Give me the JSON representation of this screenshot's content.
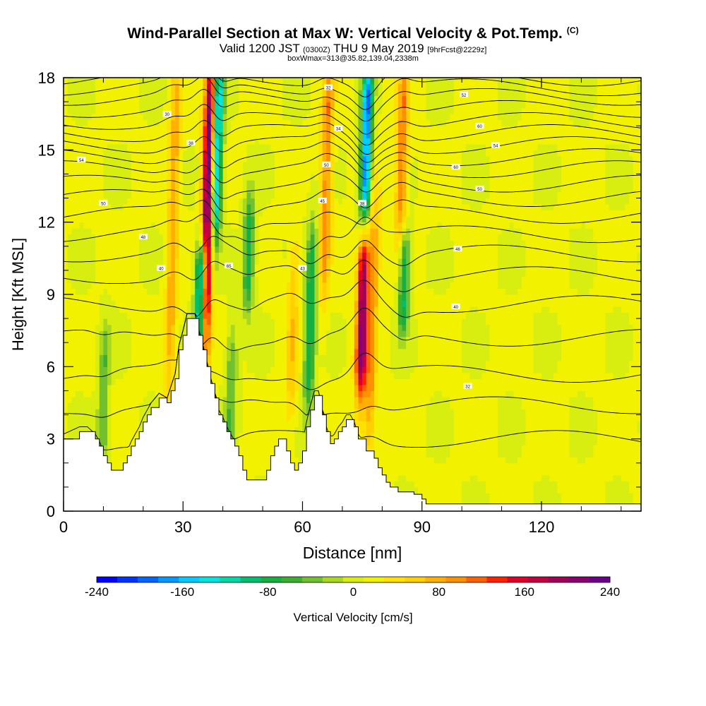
{
  "header": {
    "title": "Wind-Parallel Section at Max W: Vertical Velocity & Pot.Temp.",
    "title_mark": "(C)",
    "valid_prefix": "Valid 1200 JST",
    "valid_utc": "(0300Z)",
    "valid_date": "THU 9 May 2019",
    "forecast": "[9hrFcst@2229z]",
    "box_info": "boxWmax=313@35.82,139.04,2338m"
  },
  "chart_data": {
    "type": "heatmap",
    "xlabel": "Distance [nm]",
    "ylabel": "Height [Kft MSL]",
    "xlim": [
      0,
      145
    ],
    "ylim": [
      0,
      18
    ],
    "x_ticks": [
      0,
      30,
      60,
      90,
      120
    ],
    "y_ticks": [
      0,
      3,
      6,
      9,
      12,
      15,
      18
    ],
    "colorbar": {
      "label": "Vertical Velocity [cm/s]",
      "range": [
        -240,
        240
      ],
      "tick_values": [
        -240,
        -160,
        -80,
        0,
        80,
        160,
        240
      ],
      "tick_labels": [
        "-240",
        "-160",
        "-80",
        "0",
        "80",
        "160",
        "240"
      ],
      "colors": [
        "#0000ff",
        "#0033ff",
        "#0066ff",
        "#0099ff",
        "#00ccff",
        "#00e5e0",
        "#00d8a8",
        "#00c070",
        "#16b040",
        "#3cae30",
        "#70c030",
        "#a8d820",
        "#d8ee10",
        "#f2f200",
        "#ffe000",
        "#ffd000",
        "#ffb000",
        "#ff9000",
        "#ff6000",
        "#ff2000",
        "#e00028",
        "#c00040",
        "#a00058",
        "#8a0070",
        "#6a0088"
      ]
    },
    "updrafts": [
      {
        "x": 36.2,
        "y0": 7.2,
        "y1": 18,
        "peak": 240
      },
      {
        "x": 75.0,
        "y0": 5.5,
        "y1": 11.0,
        "peak": 200
      },
      {
        "x": 27.5,
        "y0": 6.0,
        "y1": 18,
        "peak": 70
      },
      {
        "x": 57.5,
        "y0": 4.5,
        "y1": 10.5,
        "peak": 50
      },
      {
        "x": 66.0,
        "y0": 10.0,
        "y1": 18,
        "peak": 90
      },
      {
        "x": 85.0,
        "y0": 12.0,
        "y1": 18,
        "peak": 90
      },
      {
        "x": 77.5,
        "y0": 3.5,
        "y1": 12.0,
        "peak": 80
      }
    ],
    "downdrafts": [
      {
        "x": 34.5,
        "y0": 7.0,
        "y1": 10.5,
        "peak": -220
      },
      {
        "x": 38.5,
        "y0": 12.0,
        "y1": 18,
        "peak": -180
      },
      {
        "x": 76.0,
        "y0": 12.5,
        "y1": 18,
        "peak": -200
      },
      {
        "x": 46.5,
        "y0": 9.0,
        "y1": 12.5,
        "peak": -90
      },
      {
        "x": 62.0,
        "y0": 5.0,
        "y1": 11.0,
        "peak": -100
      },
      {
        "x": 85.5,
        "y0": 8.0,
        "y1": 11.0,
        "peak": -100
      },
      {
        "x": 10.0,
        "y0": 2.0,
        "y1": 7.0,
        "peak": -60
      },
      {
        "x": 42.0,
        "y0": 2.5,
        "y1": 7.0,
        "peak": -60
      }
    ],
    "terrain": [
      [
        0,
        3
      ],
      [
        4,
        3.3
      ],
      [
        6,
        3.3
      ],
      [
        8,
        3
      ],
      [
        9,
        2.7
      ],
      [
        10,
        2.3
      ],
      [
        11,
        2
      ],
      [
        12,
        1.7
      ],
      [
        14,
        1.7
      ],
      [
        15,
        2
      ],
      [
        16,
        2.3
      ],
      [
        17,
        2.7
      ],
      [
        18,
        3
      ],
      [
        19,
        3.3
      ],
      [
        20,
        3.7
      ],
      [
        21,
        4
      ],
      [
        22,
        4.3
      ],
      [
        24,
        4.7
      ],
      [
        26,
        4.5
      ],
      [
        27,
        5
      ],
      [
        28,
        5.5
      ],
      [
        29,
        6.7
      ],
      [
        30,
        7.3
      ],
      [
        31,
        8
      ],
      [
        33,
        8
      ],
      [
        34,
        7.3
      ],
      [
        35,
        6.7
      ],
      [
        36,
        6
      ],
      [
        37,
        5.3
      ],
      [
        38,
        4.7
      ],
      [
        39,
        4
      ],
      [
        40,
        3.7
      ],
      [
        41,
        3.3
      ],
      [
        42,
        3
      ],
      [
        43,
        2.7
      ],
      [
        44,
        2.3
      ],
      [
        45,
        1.7
      ],
      [
        46,
        1.3
      ],
      [
        50,
        1.3
      ],
      [
        51,
        1.7
      ],
      [
        52,
        2.3
      ],
      [
        53,
        2.7
      ],
      [
        54,
        3
      ],
      [
        55,
        3
      ],
      [
        56,
        2.5
      ],
      [
        57,
        2
      ],
      [
        58,
        1.7
      ],
      [
        59,
        2
      ],
      [
        60,
        2.5
      ],
      [
        61,
        3.5
      ],
      [
        62,
        4.2
      ],
      [
        63,
        4.8
      ],
      [
        64,
        4.8
      ],
      [
        65,
        4
      ],
      [
        66,
        3.3
      ],
      [
        67,
        2.8
      ],
      [
        68,
        3
      ],
      [
        69,
        3.3
      ],
      [
        70,
        3.5
      ],
      [
        71,
        3.8
      ],
      [
        72,
        3.8
      ],
      [
        73,
        3.5
      ],
      [
        74,
        3
      ],
      [
        76,
        2.5
      ],
      [
        78,
        2.2
      ],
      [
        79,
        1.8
      ],
      [
        80,
        1.5
      ],
      [
        81,
        1.2
      ],
      [
        82,
        1
      ],
      [
        84,
        0.8
      ],
      [
        86,
        0.8
      ],
      [
        88,
        0.7
      ],
      [
        90,
        0.5
      ],
      [
        91,
        0.3
      ],
      [
        93,
        0.3
      ],
      [
        145,
        0.3
      ]
    ],
    "isentrope_levels": [
      3.0,
      4.4,
      5.7,
      7.2,
      8.6,
      9.8,
      10.7,
      11.5,
      12.3,
      13.0,
      13.6,
      14.2,
      14.7,
      15.2,
      15.7,
      16.2,
      16.7,
      17.2,
      17.6,
      18.0
    ],
    "isentrope_labels": [
      {
        "text": "30",
        "x": 26,
        "y": 16.5
      },
      {
        "text": "38",
        "x": 32,
        "y": 15.3
      },
      {
        "text": "54",
        "x": 4.5,
        "y": 14.6
      },
      {
        "text": "50",
        "x": 10,
        "y": 12.8
      },
      {
        "text": "48",
        "x": 20,
        "y": 11.4
      },
      {
        "text": "40",
        "x": 24.5,
        "y": 10.1
      },
      {
        "text": "34",
        "x": 69,
        "y": 15.9
      },
      {
        "text": "32",
        "x": 66.5,
        "y": 17.6
      },
      {
        "text": "50",
        "x": 66,
        "y": 14.4
      },
      {
        "text": "45",
        "x": 65,
        "y": 12.9
      },
      {
        "text": "43",
        "x": 60,
        "y": 10.1
      },
      {
        "text": "38",
        "x": 75,
        "y": 12.8
      },
      {
        "text": "52",
        "x": 100.5,
        "y": 17.3
      },
      {
        "text": "60",
        "x": 104.5,
        "y": 16.0
      },
      {
        "text": "54",
        "x": 108.5,
        "y": 15.2
      },
      {
        "text": "60",
        "x": 98.5,
        "y": 14.3
      },
      {
        "text": "50",
        "x": 104.5,
        "y": 13.4
      },
      {
        "text": "46",
        "x": 99,
        "y": 10.9
      },
      {
        "text": "40",
        "x": 98.5,
        "y": 8.5
      },
      {
        "text": "32",
        "x": 101.5,
        "y": 5.2
      },
      {
        "text": "65",
        "x": 41.5,
        "y": 10.2
      }
    ]
  }
}
